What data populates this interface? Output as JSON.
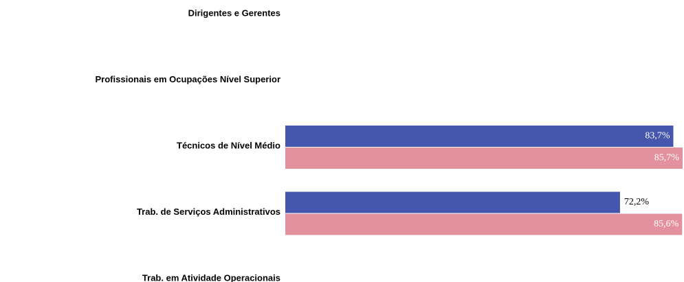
{
  "chart_data": {
    "type": "hbar",
    "categories": [
      "Dirigentes e Gerentes",
      "Profissionais em Ocupações Nível Superior",
      "Técnicos de Nível Médio",
      "Trab. de Serviços Administrativos",
      "Trab. em Atividade Operacionais"
    ],
    "series": [
      {
        "color": "#4656ac",
        "values": [
          null,
          null,
          83.7,
          72.2,
          null
        ],
        "value_labels": [
          null,
          null,
          "83,7%",
          "72,2%",
          null
        ]
      },
      {
        "color": "#e3909f",
        "values": [
          null,
          null,
          85.7,
          85.6,
          null
        ],
        "value_labels": [
          null,
          null,
          "85,7%",
          "85,6%",
          null
        ]
      }
    ],
    "xlim": [
      0,
      86
    ]
  }
}
